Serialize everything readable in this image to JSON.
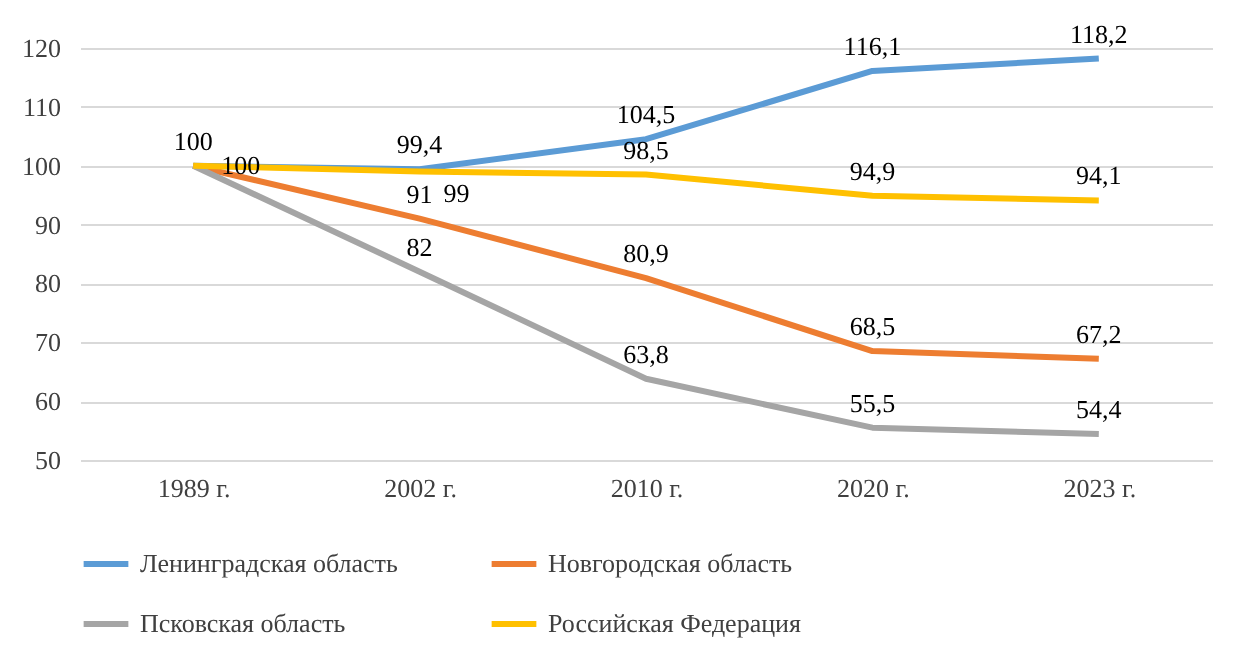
{
  "chart_data": {
    "type": "line",
    "categories": [
      "1989 г.",
      "2002 г.",
      "2010 г.",
      "2020 г.",
      "2023 г."
    ],
    "series": [
      {
        "name": "Ленинградская область",
        "color": "#5b9bd5",
        "values": [
          100,
          99.4,
          104.5,
          116.1,
          118.2
        ],
        "value_labels": [
          "100",
          "99,4",
          "104,5",
          "116,1",
          "118,2"
        ]
      },
      {
        "name": "Новгородская область",
        "color": "#ed7d31",
        "values": [
          100,
          91,
          80.9,
          68.5,
          67.2
        ],
        "value_labels": [
          "100",
          "91",
          "80,9",
          "68,5",
          "67,2"
        ]
      },
      {
        "name": "Псковская область",
        "color": "#a5a5a5",
        "values": [
          100,
          82,
          63.8,
          55.5,
          54.4
        ],
        "value_labels": [
          null,
          "82",
          "63,8",
          "55,5",
          "54,4"
        ]
      },
      {
        "name": "Российская Федерация",
        "color": "#ffc000",
        "values": [
          100,
          99,
          98.5,
          94.9,
          94.1
        ],
        "value_labels": [
          null,
          "99",
          "98,5",
          "94,9",
          "94,1"
        ]
      }
    ],
    "ylim": [
      50,
      120
    ],
    "yticks": [
      50,
      60,
      70,
      80,
      90,
      100,
      110,
      120
    ],
    "grid": "y",
    "legend": "bottom",
    "marker": "none",
    "line_style": "solid"
  }
}
